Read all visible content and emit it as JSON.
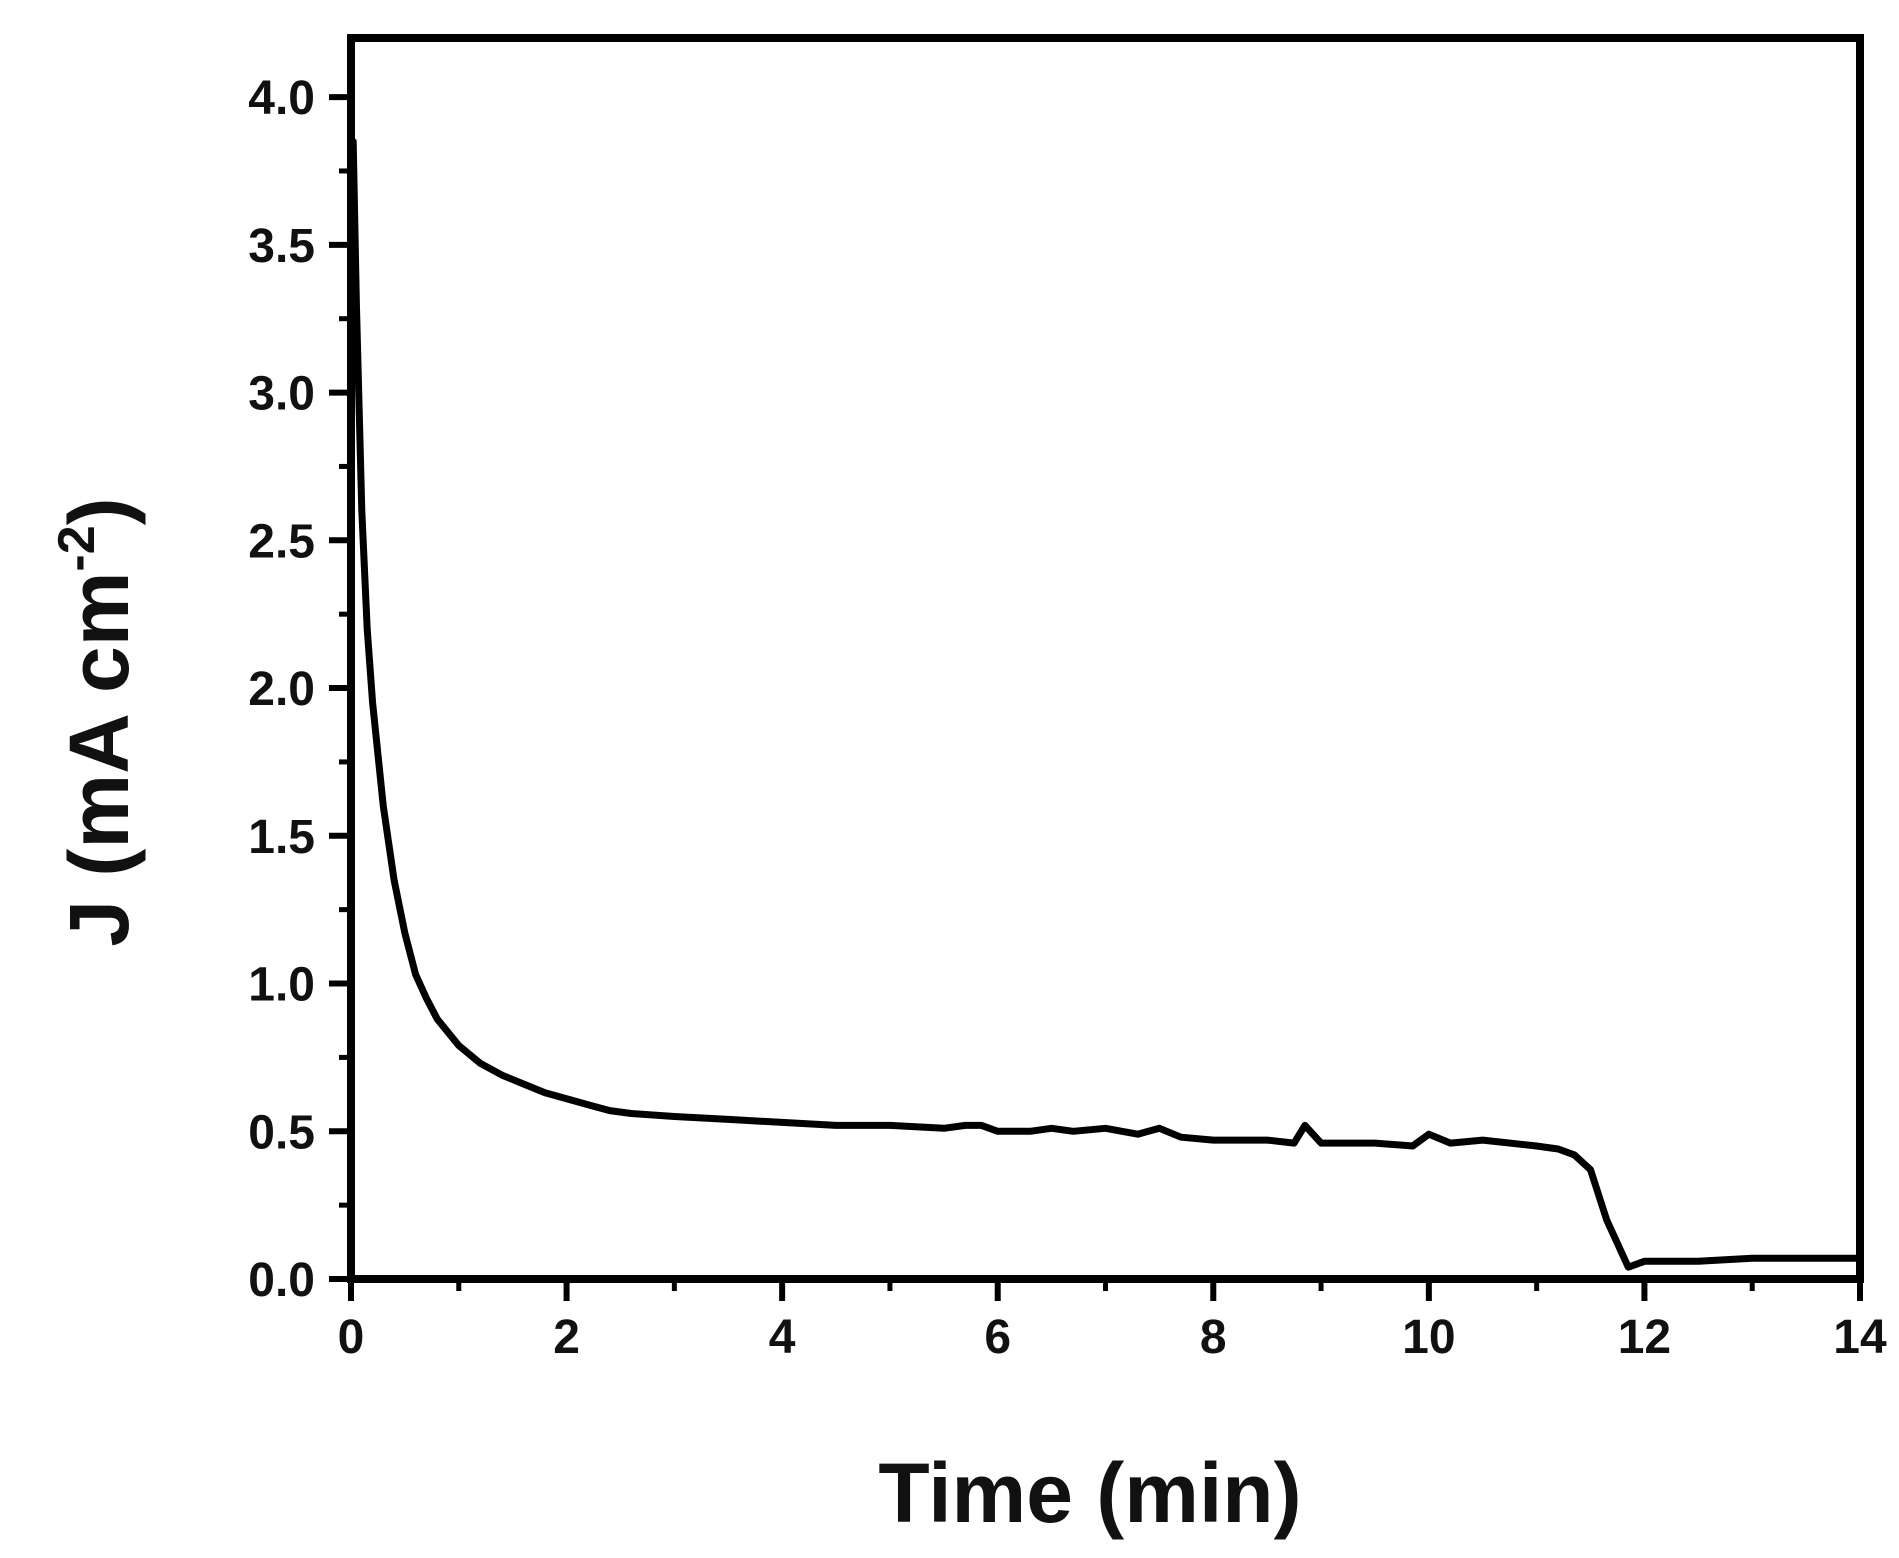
{
  "chart_data": {
    "type": "line",
    "xlabel": "Time (min)",
    "ylabel": {
      "main": "J (mA cm",
      "superscript": "-2",
      "close": ")"
    },
    "xlim": [
      0,
      14
    ],
    "ylim": [
      0,
      4.2
    ],
    "xticks": [
      0,
      2,
      4,
      6,
      8,
      10,
      12,
      14
    ],
    "xtick_labels": [
      "0",
      "2",
      "4",
      "6",
      "8",
      "10",
      "12",
      "14"
    ],
    "yticks": [
      0,
      0.5,
      1,
      1.5,
      2,
      2.5,
      3,
      3.5,
      4
    ],
    "ytick_labels": [
      "0.0",
      "0.5",
      "1.0",
      "1.5",
      "2.0",
      "2.5",
      "3.0",
      "3.5",
      "4.0"
    ],
    "grid": false,
    "line_color": "#000000",
    "series": [
      {
        "x": [
          0,
          0.02,
          0.05,
          0.1,
          0.15,
          0.2,
          0.3,
          0.4,
          0.5,
          0.6,
          0.7,
          0.8,
          1.0,
          1.2,
          1.4,
          1.6,
          1.8,
          2.0,
          2.2,
          2.4,
          2.6,
          3.0,
          3.5,
          4.0,
          4.5,
          5.0,
          5.5,
          5.7,
          5.85,
          6.0,
          6.3,
          6.5,
          6.7,
          7.0,
          7.3,
          7.5,
          7.7,
          8.0,
          8.5,
          8.75,
          8.85,
          9.0,
          9.5,
          9.85,
          10.0,
          10.2,
          10.5,
          11.0,
          11.2,
          11.35,
          11.5,
          11.65,
          11.85,
          12.0,
          12.5,
          13.0,
          14.0
        ],
        "y": [
          3.3,
          3.85,
          3.3,
          2.6,
          2.2,
          1.95,
          1.6,
          1.35,
          1.17,
          1.03,
          0.95,
          0.88,
          0.79,
          0.73,
          0.69,
          0.66,
          0.63,
          0.61,
          0.59,
          0.57,
          0.56,
          0.55,
          0.54,
          0.53,
          0.52,
          0.52,
          0.51,
          0.52,
          0.52,
          0.5,
          0.5,
          0.51,
          0.5,
          0.51,
          0.49,
          0.51,
          0.48,
          0.47,
          0.47,
          0.46,
          0.52,
          0.46,
          0.46,
          0.45,
          0.49,
          0.46,
          0.47,
          0.45,
          0.44,
          0.42,
          0.37,
          0.2,
          0.04,
          0.06,
          0.06,
          0.07,
          0.07
        ]
      }
    ]
  }
}
